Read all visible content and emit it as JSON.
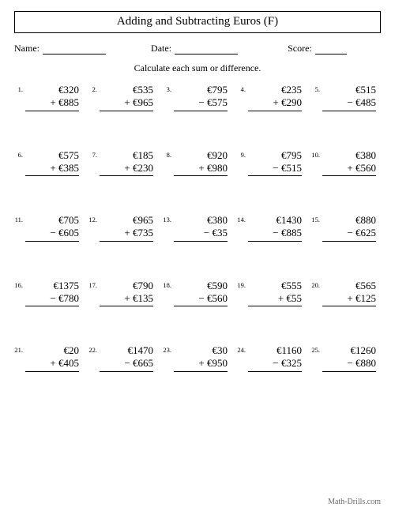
{
  "title": "Adding and Subtracting Euros (F)",
  "labels": {
    "name": "Name:",
    "date": "Date:",
    "score": "Score:"
  },
  "instruction": "Calculate each sum or difference.",
  "currency": "€",
  "problems": [
    {
      "n": "1.",
      "a": "320",
      "op": "+",
      "b": "885"
    },
    {
      "n": "2.",
      "a": "535",
      "op": "+",
      "b": "965"
    },
    {
      "n": "3.",
      "a": "795",
      "op": "−",
      "b": "575"
    },
    {
      "n": "4.",
      "a": "235",
      "op": "+",
      "b": "290"
    },
    {
      "n": "5.",
      "a": "515",
      "op": "−",
      "b": "485"
    },
    {
      "n": "6.",
      "a": "575",
      "op": "+",
      "b": "385"
    },
    {
      "n": "7.",
      "a": "185",
      "op": "+",
      "b": "230"
    },
    {
      "n": "8.",
      "a": "920",
      "op": "+",
      "b": "980"
    },
    {
      "n": "9.",
      "a": "795",
      "op": "−",
      "b": "515"
    },
    {
      "n": "10.",
      "a": "380",
      "op": "+",
      "b": "560"
    },
    {
      "n": "11.",
      "a": "705",
      "op": "−",
      "b": "605"
    },
    {
      "n": "12.",
      "a": "965",
      "op": "+",
      "b": "735"
    },
    {
      "n": "13.",
      "a": "380",
      "op": "−",
      "b": "35"
    },
    {
      "n": "14.",
      "a": "1430",
      "op": "−",
      "b": "885"
    },
    {
      "n": "15.",
      "a": "880",
      "op": "−",
      "b": "625"
    },
    {
      "n": "16.",
      "a": "1375",
      "op": "−",
      "b": "780"
    },
    {
      "n": "17.",
      "a": "790",
      "op": "+",
      "b": "135"
    },
    {
      "n": "18.",
      "a": "590",
      "op": "−",
      "b": "560"
    },
    {
      "n": "19.",
      "a": "555",
      "op": "+",
      "b": "55"
    },
    {
      "n": "20.",
      "a": "565",
      "op": "+",
      "b": "125"
    },
    {
      "n": "21.",
      "a": "20",
      "op": "+",
      "b": "405"
    },
    {
      "n": "22.",
      "a": "1470",
      "op": "−",
      "b": "665"
    },
    {
      "n": "23.",
      "a": "30",
      "op": "+",
      "b": "950"
    },
    {
      "n": "24.",
      "a": "1160",
      "op": "−",
      "b": "325"
    },
    {
      "n": "25.",
      "a": "1260",
      "op": "−",
      "b": "880"
    }
  ],
  "footer": "Math-Drills.com",
  "style": {
    "page_bg": "#ffffff",
    "text_color": "#000000",
    "footer_color": "#6b6b6b",
    "title_fontsize": 15,
    "body_fontsize": 13,
    "num_fontsize": 8.5
  }
}
